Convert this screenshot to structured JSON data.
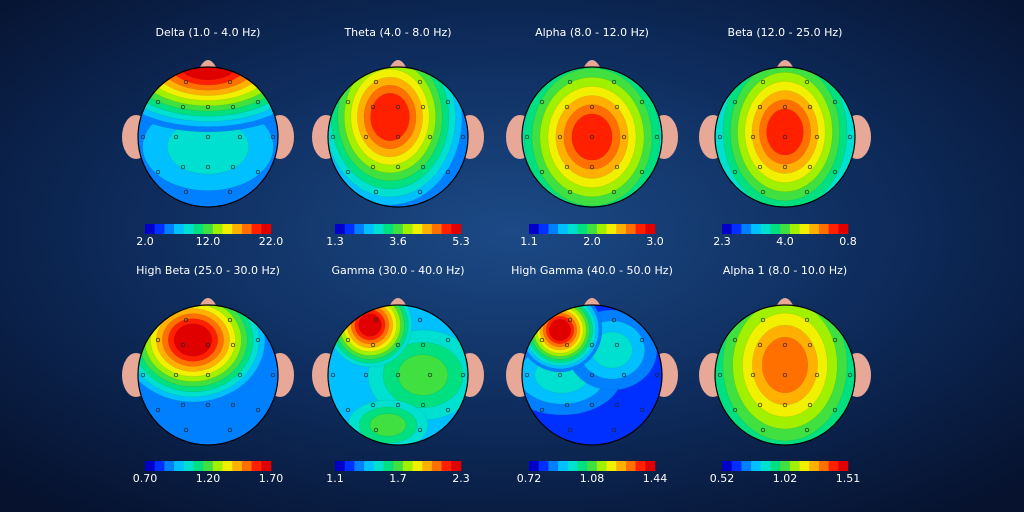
{
  "maps": [
    {
      "title": "Delta (1.0 - 4.0 Hz)",
      "scale": [
        "2.0",
        "12.0",
        "22.0"
      ]
    },
    {
      "title": "Theta (4.0 - 8.0 Hz)",
      "scale": [
        "1.3",
        "3.6",
        "5.3"
      ]
    },
    {
      "title": "Alpha (8.0 - 12.0 Hz)",
      "scale": [
        "1.1",
        "2.0",
        "3.0"
      ]
    },
    {
      "title": "Beta (12.0 - 25.0 Hz)",
      "scale": [
        "2.3",
        "4.0",
        "0.8"
      ]
    },
    {
      "title": "High Beta (25.0 - 30.0 Hz)",
      "scale": [
        "0.70",
        "1.20",
        "1.70"
      ]
    },
    {
      "title": "Gamma (30.0 - 40.0 Hz)",
      "scale": [
        "1.1",
        "1.7",
        "2.3"
      ]
    },
    {
      "title": "High Gamma (40.0 - 50.0 Hz)",
      "scale": [
        "0.72",
        "1.08",
        "1.44"
      ]
    },
    {
      "title": "Alpha 1 (8.0 - 10.0 Hz)",
      "scale": [
        "0.52",
        "1.02",
        "1.51"
      ]
    }
  ]
}
